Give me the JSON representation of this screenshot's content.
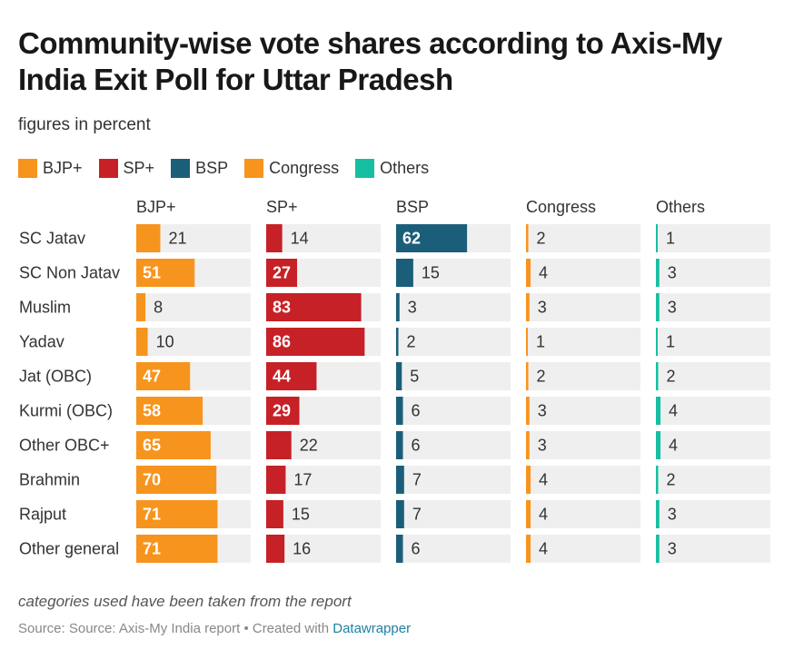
{
  "title": "Community-wise vote shares according to Axis-My India Exit Poll for Uttar Pradesh",
  "subtitle": "figures in percent",
  "notes": "categories used have been taken from the report",
  "source": {
    "text": "Source: Source: Axis-My India report • Created with ",
    "link": "Datawrapper"
  },
  "colors": {
    "BJP+": "#f7941d",
    "SP+": "#c62127",
    "BSP": "#1b5e7a",
    "Congress": "#f7941d",
    "Others": "#16bfa2",
    "track": "#efefef"
  },
  "legend": [
    "BJP+",
    "SP+",
    "BSP",
    "Congress",
    "Others"
  ],
  "chart_data": {
    "type": "bar",
    "categories": [
      "SC Jatav",
      "SC Non Jatav",
      "Muslim",
      "Yadav",
      "Jat (OBC)",
      "Kurmi (OBC)",
      "Other OBC+",
      "Brahmin",
      "Rajput",
      "Other general"
    ],
    "xlim": [
      0,
      100
    ],
    "series": [
      {
        "name": "BJP+",
        "values": [
          21,
          51,
          8,
          10,
          47,
          58,
          65,
          70,
          71,
          71
        ]
      },
      {
        "name": "SP+",
        "values": [
          14,
          27,
          83,
          86,
          44,
          29,
          22,
          17,
          15,
          16
        ]
      },
      {
        "name": "BSP",
        "values": [
          62,
          15,
          3,
          2,
          5,
          6,
          6,
          7,
          7,
          6
        ]
      },
      {
        "name": "Congress",
        "values": [
          2,
          4,
          3,
          1,
          2,
          3,
          3,
          4,
          4,
          4
        ]
      },
      {
        "name": "Others",
        "values": [
          1,
          3,
          3,
          1,
          2,
          4,
          4,
          2,
          3,
          3
        ]
      }
    ]
  }
}
